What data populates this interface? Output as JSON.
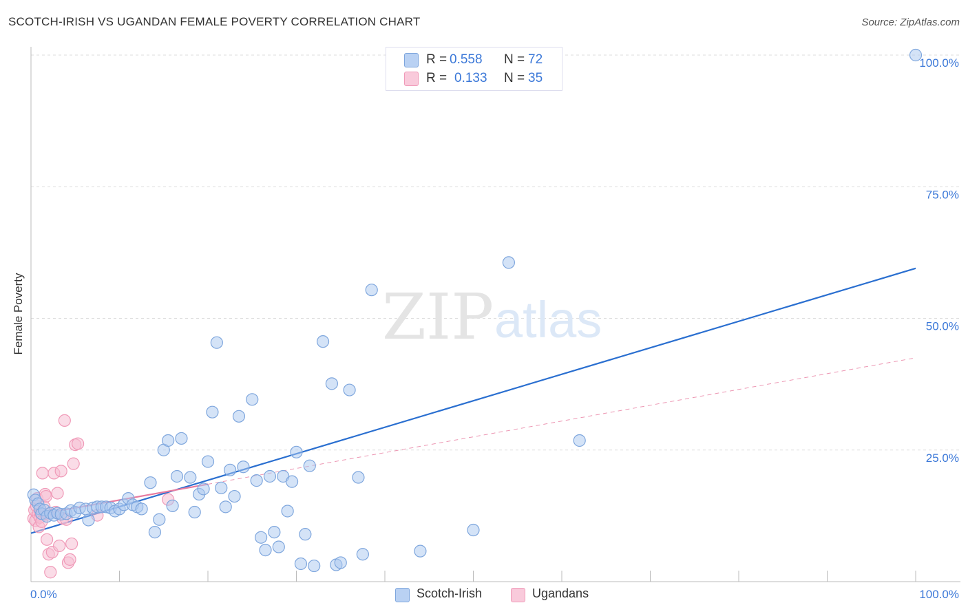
{
  "title": "SCOTCH-IRISH VS UGANDAN FEMALE POVERTY CORRELATION CHART",
  "source": "Source: ZipAtlas.com",
  "watermark": {
    "zip": "ZIP",
    "atlas": "atlas"
  },
  "colors": {
    "blue_stroke": "#7ea6dd",
    "blue_fill": "#a9c7ef",
    "blue_line": "#2a6fd0",
    "pink_stroke": "#f09ab8",
    "pink_fill": "#f6c0d3",
    "pink_line": "#e87ca0",
    "tick_label": "#3b78d8",
    "grid": "#dddddd"
  },
  "legend_top": [
    {
      "r_label": "R =",
      "r_value": "0.558",
      "n_label": "N =",
      "n_value": "72"
    },
    {
      "r_label": "R =",
      "r_value": "0.133",
      "n_label": "N =",
      "n_value": "35"
    }
  ],
  "chart_data": {
    "type": "scatter",
    "title": "SCOTCH-IRISH VS UGANDAN FEMALE POVERTY CORRELATION CHART",
    "xlabel": "",
    "ylabel": "Female Poverty",
    "xlim": [
      0,
      100
    ],
    "ylim": [
      0,
      100
    ],
    "x_tick_labels": [
      "0.0%",
      "100.0%"
    ],
    "y_tick_labels": [
      "25.0%",
      "50.0%",
      "75.0%",
      "100.0%"
    ],
    "y_ticks": [
      25,
      50,
      75,
      100
    ],
    "grid": true,
    "legend_position": "top-center",
    "series": [
      {
        "name": "Scotch-Irish",
        "R": 0.558,
        "N": 72,
        "trend": {
          "x0": 0,
          "y0": 9.2,
          "x1": 100,
          "y1": 59.5,
          "style": "solid"
        },
        "points": [
          [
            0.3,
            16.5
          ],
          [
            0.5,
            15.5
          ],
          [
            0.8,
            14.8
          ],
          [
            1.0,
            13.8
          ],
          [
            1.2,
            12.9
          ],
          [
            1.5,
            13.6
          ],
          [
            1.8,
            12.4
          ],
          [
            2.2,
            13.0
          ],
          [
            2.6,
            12.6
          ],
          [
            3.0,
            13.0
          ],
          [
            3.4,
            12.8
          ],
          [
            4.0,
            12.9
          ],
          [
            4.5,
            13.5
          ],
          [
            5.0,
            13.2
          ],
          [
            5.5,
            14.0
          ],
          [
            6.2,
            13.8
          ],
          [
            6.5,
            11.7
          ],
          [
            7.0,
            14.0
          ],
          [
            7.5,
            14.2
          ],
          [
            8.0,
            14.2
          ],
          [
            8.5,
            14.2
          ],
          [
            9.0,
            14.0
          ],
          [
            9.5,
            13.4
          ],
          [
            10.0,
            13.8
          ],
          [
            10.5,
            14.6
          ],
          [
            11.0,
            15.8
          ],
          [
            11.5,
            14.6
          ],
          [
            12.0,
            14.2
          ],
          [
            12.5,
            13.8
          ],
          [
            13.5,
            18.8
          ],
          [
            14.0,
            9.4
          ],
          [
            14.5,
            11.8
          ],
          [
            15.0,
            25.0
          ],
          [
            15.5,
            26.8
          ],
          [
            16.0,
            14.4
          ],
          [
            16.5,
            20.0
          ],
          [
            17.0,
            27.2
          ],
          [
            18.0,
            19.8
          ],
          [
            18.5,
            13.2
          ],
          [
            19.0,
            16.6
          ],
          [
            19.5,
            17.6
          ],
          [
            20.0,
            22.8
          ],
          [
            20.5,
            32.2
          ],
          [
            21.0,
            45.4
          ],
          [
            21.5,
            17.8
          ],
          [
            22.0,
            14.2
          ],
          [
            22.5,
            21.2
          ],
          [
            23.0,
            16.2
          ],
          [
            23.5,
            31.4
          ],
          [
            24.0,
            21.8
          ],
          [
            25.0,
            34.6
          ],
          [
            25.5,
            19.2
          ],
          [
            26.0,
            8.4
          ],
          [
            26.5,
            6.0
          ],
          [
            27.0,
            20.0
          ],
          [
            27.5,
            9.4
          ],
          [
            28.0,
            6.6
          ],
          [
            28.5,
            20.0
          ],
          [
            29.0,
            13.4
          ],
          [
            29.5,
            19.0
          ],
          [
            30.0,
            24.6
          ],
          [
            30.5,
            3.4
          ],
          [
            31.0,
            9.0
          ],
          [
            31.5,
            22.0
          ],
          [
            32.0,
            3.0
          ],
          [
            33.0,
            45.6
          ],
          [
            34.0,
            37.6
          ],
          [
            34.5,
            3.2
          ],
          [
            35.0,
            3.6
          ],
          [
            36.0,
            36.4
          ],
          [
            37.0,
            19.8
          ],
          [
            37.5,
            5.2
          ],
          [
            38.5,
            55.4
          ],
          [
            44.0,
            5.8
          ],
          [
            50.0,
            9.8
          ],
          [
            54.0,
            60.6
          ],
          [
            62.0,
            26.8
          ],
          [
            100.0,
            100.0
          ]
        ]
      },
      {
        "name": "Ugandans",
        "R": 0.133,
        "N": 35,
        "trend": {
          "x0": 0,
          "y0": 12.5,
          "x1": 20,
          "y1": 18.5,
          "style": "solid",
          "extension": {
            "x1": 100,
            "y1": 42.5,
            "style": "dashed"
          }
        },
        "points": [
          [
            0.3,
            12.0
          ],
          [
            0.4,
            13.6
          ],
          [
            0.5,
            11.6
          ],
          [
            0.6,
            14.4
          ],
          [
            0.7,
            15.8
          ],
          [
            0.8,
            12.8
          ],
          [
            0.9,
            10.4
          ],
          [
            1.0,
            12.2
          ],
          [
            1.1,
            13.0
          ],
          [
            1.2,
            11.4
          ],
          [
            1.3,
            20.6
          ],
          [
            1.5,
            14.2
          ],
          [
            1.6,
            16.6
          ],
          [
            1.7,
            16.2
          ],
          [
            1.8,
            8.0
          ],
          [
            1.9,
            12.8
          ],
          [
            2.0,
            5.2
          ],
          [
            2.2,
            1.8
          ],
          [
            2.4,
            5.6
          ],
          [
            2.6,
            20.6
          ],
          [
            2.8,
            13.2
          ],
          [
            3.0,
            16.8
          ],
          [
            3.2,
            6.8
          ],
          [
            3.4,
            21.0
          ],
          [
            3.6,
            12.0
          ],
          [
            3.8,
            30.6
          ],
          [
            4.0,
            11.8
          ],
          [
            4.2,
            3.6
          ],
          [
            4.4,
            4.2
          ],
          [
            4.6,
            7.2
          ],
          [
            4.8,
            22.4
          ],
          [
            5.0,
            26.0
          ],
          [
            5.3,
            26.2
          ],
          [
            7.5,
            12.6
          ],
          [
            15.5,
            15.6
          ]
        ]
      }
    ]
  },
  "legend_bottom": [
    {
      "label": "Scotch-Irish"
    },
    {
      "label": "Ugandans"
    }
  ]
}
